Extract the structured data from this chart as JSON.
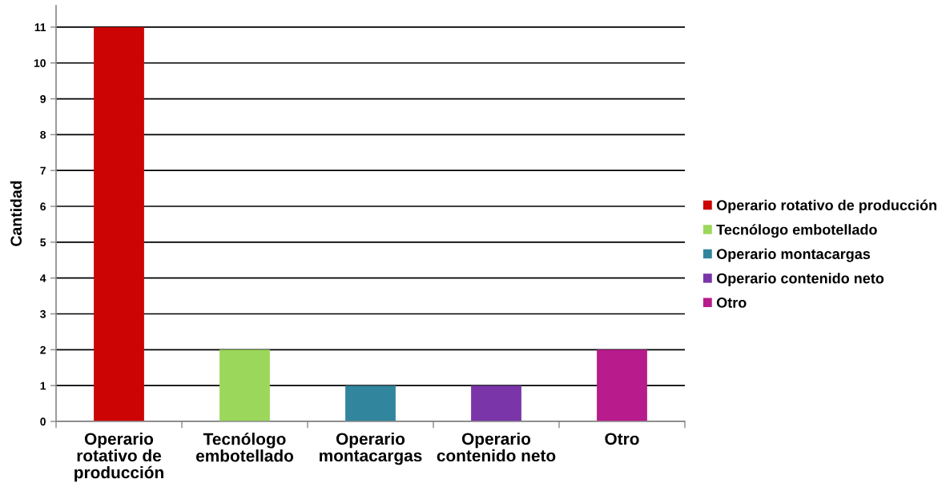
{
  "chart_data": {
    "type": "bar",
    "ylabel": "Cantidad",
    "categories": [
      "Operario rotativo de producción",
      "Tecnólogo embotellado",
      "Operario montacargas",
      "Operario contenido neto",
      "Otro"
    ],
    "series": [
      {
        "name": "Operario rotativo de producción",
        "color": "#cc0404",
        "values": [
          11,
          null,
          null,
          null,
          null
        ]
      },
      {
        "name": "Tecnólogo embotellado",
        "color": "#9bd75a",
        "values": [
          null,
          2,
          null,
          null,
          null
        ]
      },
      {
        "name": "Operario montacargas",
        "color": "#31859c",
        "values": [
          null,
          null,
          1,
          null,
          null
        ]
      },
      {
        "name": "Operario contenido neto",
        "color": "#7a35a8",
        "values": [
          null,
          null,
          null,
          1,
          null
        ]
      },
      {
        "name": "Otro",
        "color": "#b81b8c",
        "values": [
          null,
          null,
          null,
          null,
          2
        ]
      }
    ],
    "ylim": [
      0,
      11.6
    ],
    "yticks": [
      0,
      1,
      2,
      3,
      4,
      5,
      6,
      7,
      8,
      9,
      10,
      11
    ],
    "grid": "y",
    "legend": "right"
  }
}
